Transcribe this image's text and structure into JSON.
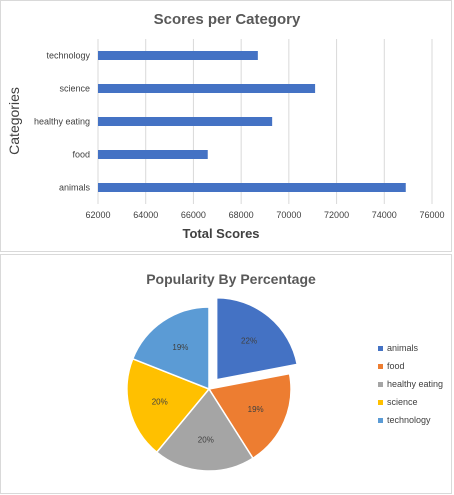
{
  "chart_data": [
    {
      "type": "bar",
      "orientation": "horizontal",
      "title": "Scores per Category",
      "xlabel": "Total Scores",
      "ylabel": "Categories",
      "categories": [
        "technology",
        "science",
        "healthy eating",
        "food",
        "animals"
      ],
      "values": [
        68700,
        71100,
        69300,
        66600,
        74900
      ],
      "xlim": [
        62000,
        76000
      ],
      "xticks": [
        "62000",
        "64000",
        "66000",
        "68000",
        "70000",
        "72000",
        "74000",
        "76000"
      ],
      "grid": true,
      "color": "#4472C4"
    },
    {
      "type": "pie",
      "title": "Popularity By Percentage",
      "labels": [
        "animals",
        "food",
        "healthy eating",
        "science",
        "technology"
      ],
      "values": [
        22,
        19,
        20,
        20,
        19
      ],
      "value_labels": [
        "22%",
        "19%",
        "20%",
        "20%",
        "19%"
      ],
      "colors": [
        "#4472C4",
        "#ED7D31",
        "#A5A5A5",
        "#FFC000",
        "#5B9BD5"
      ],
      "exploded": "animals",
      "legend": "right"
    }
  ]
}
